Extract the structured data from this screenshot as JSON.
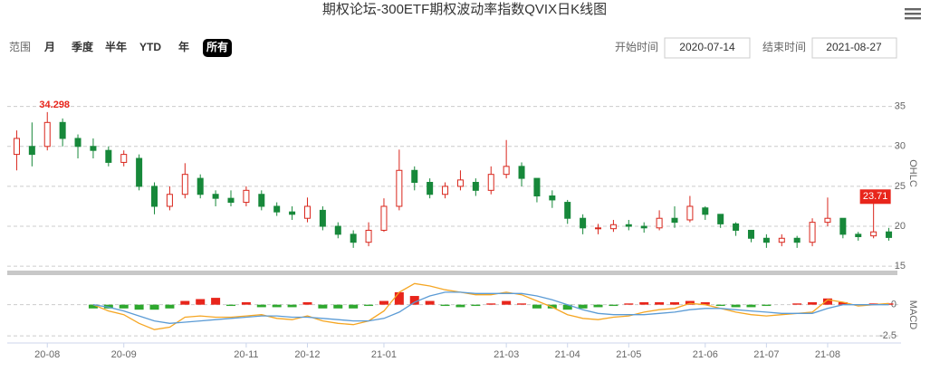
{
  "header": {
    "title": "期权论坛-300ETF期权波动率指数QVIX日K线图",
    "range_label": "范围",
    "ranges": [
      "月",
      "季度",
      "半年",
      "YTD",
      "年",
      "所有"
    ],
    "start_label": "开始时间",
    "start_date": "2020-07-14",
    "end_label": "结束时间",
    "end_date": "2021-08-27"
  },
  "chart_data": [
    {
      "type": "candlestick",
      "y_label": "OHLC",
      "categories": [
        null,
        null,
        "20-08",
        null,
        null,
        null,
        null,
        "20-09",
        null,
        null,
        null,
        null,
        null,
        null,
        null,
        "20-11",
        null,
        null,
        null,
        "20-12",
        null,
        null,
        null,
        null,
        "21-01",
        null,
        null,
        null,
        null,
        null,
        null,
        null,
        "21-03",
        null,
        null,
        null,
        "21-04",
        null,
        null,
        null,
        "21-05",
        null,
        null,
        null,
        null,
        "21-06",
        null,
        null,
        null,
        "21-07",
        null,
        null,
        null,
        "21-08",
        null,
        null,
        null,
        null
      ],
      "open": [
        29,
        30,
        30,
        33,
        31,
        30,
        29.5,
        28,
        28.5,
        25,
        22.5,
        24,
        26,
        24,
        23.5,
        23,
        24,
        22.5,
        21.8,
        21,
        22,
        20,
        19,
        18,
        19.5,
        22.5,
        27,
        25.5,
        24,
        25,
        25.5,
        24.5,
        26.5,
        27.5,
        26,
        23.8,
        23,
        21,
        19.8,
        19.7,
        20.2,
        20,
        19.8,
        21,
        20.8,
        22.3,
        21.5,
        20.3,
        19.5,
        18.5,
        18,
        18.5,
        18,
        20.5,
        21,
        19,
        18.8,
        19.3
      ],
      "high": [
        32,
        33,
        34.298,
        33.5,
        31.5,
        31,
        30,
        29.5,
        29,
        25.5,
        25,
        27.9,
        26.5,
        24.5,
        24.5,
        25,
        24.5,
        23,
        22.5,
        23.6,
        22.5,
        20.5,
        19.5,
        20.5,
        23.5,
        29.6,
        27.5,
        26,
        25.5,
        27,
        26,
        27.5,
        30.8,
        28,
        26,
        24.5,
        23.3,
        21.5,
        20.3,
        20.8,
        20.8,
        20.5,
        22,
        22.5,
        23.8,
        22.5,
        21.5,
        20.5,
        19.5,
        19,
        19,
        18.8,
        21,
        23.6,
        21,
        19.3,
        23.71,
        19.8
      ],
      "low": [
        27,
        27.5,
        29.5,
        30,
        28.5,
        28.5,
        27.5,
        27.5,
        24.5,
        21.5,
        22,
        23.5,
        23.5,
        22.5,
        22.5,
        22.5,
        22,
        21.3,
        20.8,
        20.5,
        19.5,
        18.5,
        17.3,
        17.5,
        19.3,
        22,
        24.5,
        23.5,
        23.5,
        24.5,
        23.8,
        24,
        26,
        25,
        23,
        22.3,
        20.3,
        19,
        19,
        19.3,
        19.5,
        19.2,
        19.5,
        19.8,
        20.5,
        20.8,
        19.8,
        18.8,
        18,
        17.3,
        17.5,
        17.3,
        17.5,
        20,
        18.5,
        18.2,
        18.5,
        18.2
      ],
      "close": [
        31,
        29,
        33,
        31,
        30,
        29.5,
        28,
        29,
        25,
        22.5,
        24,
        26.5,
        24,
        23.5,
        23,
        24.5,
        22.5,
        21.8,
        21.5,
        22.5,
        20,
        19,
        18,
        19.5,
        22.5,
        27,
        25.5,
        24,
        25,
        25.8,
        24.5,
        26.5,
        27.5,
        26,
        23.8,
        23.3,
        21,
        19.8,
        19.8,
        20.2,
        20,
        19.8,
        21,
        20.5,
        22.5,
        21.5,
        20.3,
        19.5,
        18.5,
        18,
        18.5,
        18,
        20.5,
        21,
        19,
        18.7,
        19.3,
        18.6
      ],
      "up_color": "#d9261c",
      "down_color": "#17883a",
      "high_labels": [
        34.298,
        23.71
      ],
      "ylim": [
        14,
        37
      ],
      "yticks": [
        15,
        20,
        25,
        30,
        35
      ],
      "grid": true
    },
    {
      "type": "macd",
      "y_label": "MACD",
      "hist": [
        null,
        null,
        null,
        null,
        null,
        -0.3,
        -0.3,
        -0.3,
        -0.4,
        -0.4,
        -0.3,
        0.3,
        0.45,
        0.55,
        -0.1,
        0.2,
        -0.2,
        -0.2,
        -0.2,
        0.2,
        -0.3,
        -0.3,
        -0.3,
        -0.1,
        0.3,
        1.0,
        0.7,
        0.3,
        -0.1,
        -0.2,
        -0.1,
        0.1,
        0.3,
        0.1,
        -0.3,
        -0.3,
        -0.4,
        -0.3,
        -0.2,
        -0.1,
        0.1,
        0.2,
        0.2,
        0.2,
        0.3,
        0.2,
        -0.1,
        -0.2,
        -0.2,
        -0.1,
        0,
        0.1,
        0.2,
        0.5,
        0.2,
        0,
        0.1,
        0.1
      ],
      "lines": [
        {
          "color": "#f5a623",
          "values": [
            null,
            null,
            null,
            null,
            null,
            0,
            -0.5,
            -0.8,
            -1.5,
            -2.0,
            -1.8,
            -1.0,
            -0.9,
            -1.0,
            -1.0,
            -0.9,
            -0.8,
            -1.1,
            -1.2,
            -0.9,
            -1.3,
            -1.5,
            -1.6,
            -1.3,
            -0.5,
            1.0,
            1.7,
            1.5,
            1.2,
            1.0,
            0.8,
            0.8,
            1.0,
            0.8,
            0.3,
            -0.2,
            -0.8,
            -1.1,
            -1.2,
            -1.0,
            -0.9,
            -0.6,
            -0.4,
            -0.3,
            0.1,
            0,
            -0.3,
            -0.6,
            -0.8,
            -0.9,
            -0.8,
            -0.7,
            -0.6,
            0.4,
            0.2,
            -0.1,
            0,
            0.1
          ]
        },
        {
          "color": "#5b9bd5",
          "values": [
            null,
            null,
            null,
            null,
            null,
            0,
            -0.2,
            -0.5,
            -0.9,
            -1.3,
            -1.5,
            -1.4,
            -1.3,
            -1.2,
            -1.1,
            -1.0,
            -0.9,
            -0.9,
            -1.0,
            -1.0,
            -1.1,
            -1.2,
            -1.3,
            -1.3,
            -1.1,
            -0.6,
            0.2,
            0.7,
            1.0,
            1.0,
            0.9,
            0.9,
            0.9,
            0.9,
            0.7,
            0.4,
            0,
            -0.4,
            -0.7,
            -0.8,
            -0.8,
            -0.8,
            -0.7,
            -0.6,
            -0.4,
            -0.3,
            -0.3,
            -0.4,
            -0.5,
            -0.6,
            -0.7,
            -0.7,
            -0.7,
            -0.3,
            0,
            0,
            0,
            0
          ]
        }
      ],
      "up_color": "#e8251b",
      "down_color": "#2ea82e",
      "ylim": [
        -3,
        2.3
      ],
      "yticks": [
        0,
        -2.5
      ],
      "grid": true
    }
  ]
}
